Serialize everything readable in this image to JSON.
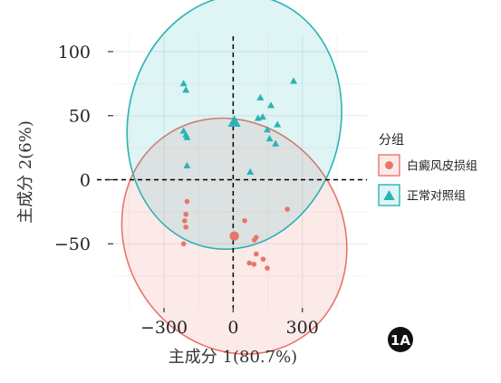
{
  "chart_data": {
    "type": "scatter",
    "xlabel": "主成分 1(80.7%)",
    "ylabel": "主成分 2(6%)",
    "xticks": [
      "−300",
      "0",
      "300"
    ],
    "yticks": [
      "100",
      "50",
      "0",
      "−50"
    ],
    "xlim": [
      -520,
      580
    ],
    "ylim": [
      -100,
      112
    ],
    "grid": true,
    "legend_position": "right",
    "legend_title": "分组",
    "panel_label": "1A",
    "colors": {
      "group1": "#e8756b",
      "group2": "#2bb3b5"
    },
    "series": [
      {
        "name": "白癜风皮损组",
        "marker": "circle",
        "points": [
          [
            -200,
            -17
          ],
          [
            -205,
            -27
          ],
          [
            -210,
            -32
          ],
          [
            -205,
            -37
          ],
          [
            -215,
            -50
          ],
          [
            50,
            -32
          ],
          [
            100,
            -45
          ],
          [
            92,
            -47
          ],
          [
            100,
            -58
          ],
          [
            70,
            -65
          ],
          [
            90,
            -66
          ],
          [
            130,
            -62
          ],
          [
            148,
            -69
          ],
          [
            235,
            -23
          ]
        ],
        "centroid": [
          5,
          -44
        ],
        "ellipse": {
          "center": [
            5,
            -44
          ],
          "rx": 470,
          "ry": 95,
          "angle_deg": -33
        }
      },
      {
        "name": "正常对照组",
        "marker": "triangle",
        "points": [
          [
            -215,
            75
          ],
          [
            -205,
            70
          ],
          [
            -215,
            38
          ],
          [
            -205,
            35
          ],
          [
            -200,
            33
          ],
          [
            -200,
            11
          ],
          [
            118,
            64
          ],
          [
            164,
            58
          ],
          [
            108,
            48
          ],
          [
            128,
            49
          ],
          [
            192,
            43
          ],
          [
            148,
            39
          ],
          [
            158,
            32
          ],
          [
            184,
            28
          ],
          [
            262,
            77
          ],
          [
            74,
            6
          ]
        ],
        "centroid": [
          5,
          45
        ],
        "ellipse": {
          "center": [
            5,
            45
          ],
          "rx": 460,
          "ry": 100,
          "angle_deg": 13
        }
      }
    ]
  }
}
